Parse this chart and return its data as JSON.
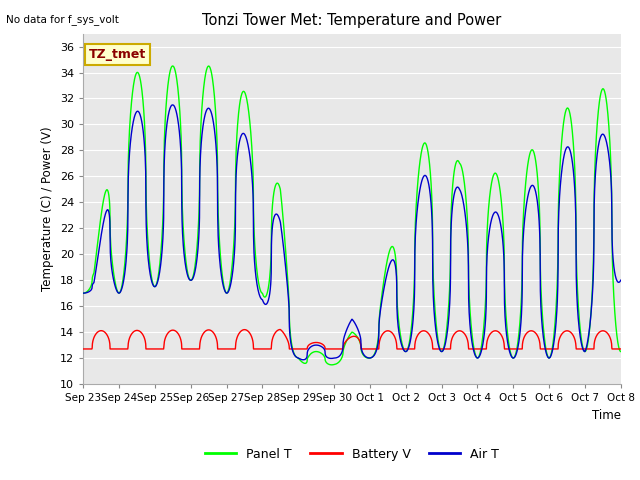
{
  "title": "Tonzi Tower Met: Temperature and Power",
  "ylabel": "Temperature (C) / Power (V)",
  "xlabel": "Time",
  "ylim": [
    10,
    37
  ],
  "yticks": [
    10,
    12,
    14,
    16,
    18,
    20,
    22,
    24,
    26,
    28,
    30,
    32,
    34,
    36
  ],
  "xtick_labels": [
    "Sep 23",
    "Sep 24",
    "Sep 25",
    "Sep 26",
    "Sep 27",
    "Sep 28",
    "Sep 29",
    "Sep 30",
    "Oct 1",
    "Oct 2",
    "Oct 3",
    "Oct 4",
    "Oct 5",
    "Oct 6",
    "Oct 7",
    "Oct 8"
  ],
  "no_data_text": "No data for f_sys_volt",
  "annotation_text": "TZ_tmet",
  "bg_color": "#e8e8e8",
  "panel_color": "#00ff00",
  "battery_color": "#ff0000",
  "air_color": "#0000cc",
  "legend_labels": [
    "Panel T",
    "Battery V",
    "Air T"
  ]
}
